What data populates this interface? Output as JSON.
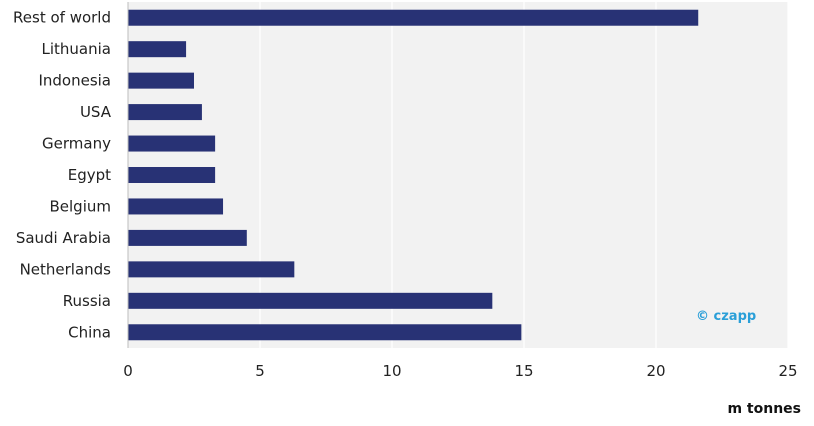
{
  "chart_data": {
    "type": "bar",
    "orientation": "horizontal",
    "categories": [
      "Rest of world",
      "Lithuania",
      "Indonesia",
      "USA",
      "Germany",
      "Egypt",
      "Belgium",
      "Saudi Arabia",
      "Netherlands",
      "Russia",
      "China"
    ],
    "values": [
      21.6,
      2.2,
      2.5,
      2.8,
      3.3,
      3.3,
      3.6,
      4.5,
      6.3,
      13.8,
      14.9
    ],
    "xlim": [
      0,
      25
    ],
    "xticks": [
      0,
      5,
      10,
      15,
      20,
      25
    ],
    "xlabel": "m tonnes",
    "ylabel": "",
    "title": "",
    "grid": "vertical",
    "bar_color": "#283275",
    "plot_background": "#f2f2f2",
    "watermark": "© czapp",
    "watermark_color": "#2a9fd8"
  }
}
